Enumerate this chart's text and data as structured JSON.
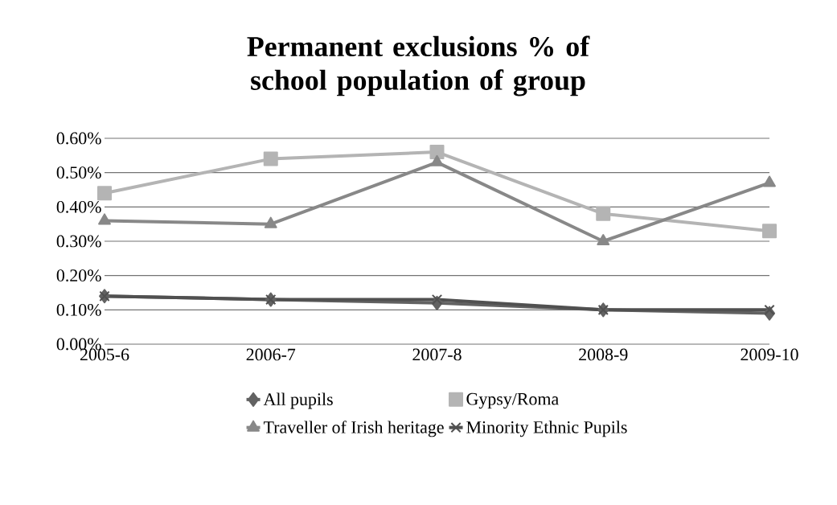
{
  "chart_data": {
    "type": "line",
    "title": "Permanent exclusions % of school population of group",
    "categories": [
      "2005-6",
      "2006-7",
      "2007-8",
      "2008-9",
      "2009-10"
    ],
    "series": [
      {
        "name": "All pupils",
        "color": "#626262",
        "marker": "diamond",
        "values": [
          0.14,
          0.13,
          0.12,
          0.1,
          0.09
        ]
      },
      {
        "name": "Gypsy/Roma",
        "color": "#b4b4b4",
        "marker": "square",
        "values": [
          0.44,
          0.54,
          0.56,
          0.38,
          0.33
        ]
      },
      {
        "name": "Traveller of Irish heritage",
        "color": "#888888",
        "marker": "triangle",
        "values": [
          0.36,
          0.35,
          0.53,
          0.3,
          0.47
        ]
      },
      {
        "name": "Minority Ethnic Pupils",
        "color": "#505050",
        "marker": "cross",
        "values": [
          0.14,
          0.13,
          0.13,
          0.1,
          0.1
        ]
      }
    ],
    "ylim": [
      0,
      0.6
    ],
    "yticks": [
      {
        "value": 0,
        "label": "0.00%"
      },
      {
        "value": 0.1,
        "label": "0.10%"
      },
      {
        "value": 0.2,
        "label": "0.20%"
      },
      {
        "value": 0.3,
        "label": "0.30%"
      },
      {
        "value": 0.4,
        "label": "0.40%"
      },
      {
        "value": 0.5,
        "label": "0.50%"
      },
      {
        "value": 0.6,
        "label": "0.60%"
      }
    ],
    "grid": "y",
    "legend": "bottom"
  }
}
